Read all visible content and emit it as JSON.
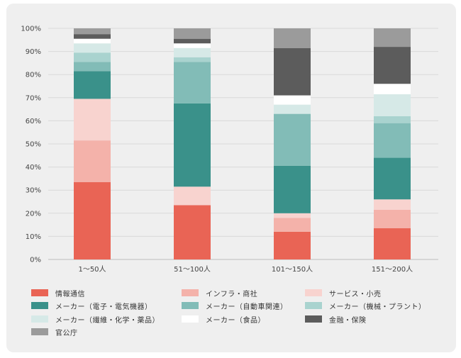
{
  "chart_data": {
    "type": "bar",
    "stacked": true,
    "categories": [
      "1〜50人",
      "51〜100人",
      "101〜150人",
      "151〜200人"
    ],
    "y_ticks": [
      "0%",
      "10%",
      "20%",
      "30%",
      "40%",
      "50%",
      "60%",
      "70%",
      "80%",
      "90%",
      "100%"
    ],
    "ylim": [
      0,
      100
    ],
    "grid": true,
    "legend_position": "bottom",
    "series": [
      {
        "name": "情報通信",
        "color": "#e96455",
        "values": [
          33.5,
          23.5,
          12,
          13.5
        ]
      },
      {
        "name": "インフラ・商社",
        "color": "#f4b2aa",
        "values": [
          18,
          0,
          6,
          8
        ]
      },
      {
        "name": "サービス・小売",
        "color": "#f8d3cf",
        "values": [
          18,
          8,
          2,
          4.5
        ]
      },
      {
        "name": "メーカー（電子・電気機器）",
        "color": "#3a918a",
        "values": [
          12,
          36,
          20.5,
          18
        ]
      },
      {
        "name": "メーカー（自動車関連）",
        "color": "#82bcb7",
        "values": [
          4,
          18,
          22.5,
          15
        ]
      },
      {
        "name": "メーカー（機械・プラント）",
        "color": "#a9d3cf",
        "values": [
          4,
          2,
          0,
          3
        ]
      },
      {
        "name": "メーカー（繊維・化学・薬品）",
        "color": "#d6e9e7",
        "values": [
          4,
          4,
          4,
          9.5
        ]
      },
      {
        "name": "メーカー（食品）",
        "color": "#ffffff",
        "values": [
          2,
          2,
          4,
          4.5
        ]
      },
      {
        "name": "金融・保険",
        "color": "#5c5c5c",
        "values": [
          2,
          2,
          20.5,
          16
        ]
      },
      {
        "name": "官公庁",
        "color": "#9b9b9b",
        "values": [
          2.5,
          4.5,
          8.5,
          8
        ]
      }
    ]
  }
}
